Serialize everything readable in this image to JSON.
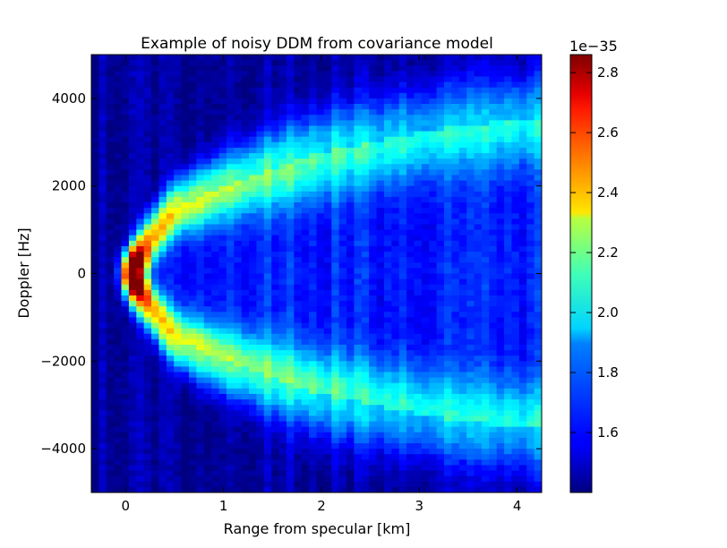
{
  "chart_data": {
    "type": "heatmap",
    "title": "Example of noisy DDM from covariance model",
    "xlabel": "Range from specular [km]",
    "ylabel": "Doppler [Hz]",
    "xlim": [
      -0.35,
      4.25
    ],
    "ylim": [
      -5000,
      5000
    ],
    "x_ticks": [
      0,
      1,
      2,
      3,
      4
    ],
    "x_tick_labels": [
      "0",
      "1",
      "2",
      "3",
      "4"
    ],
    "y_ticks": [
      -4000,
      -2000,
      0,
      2000,
      4000
    ],
    "y_tick_labels": [
      "−4000",
      "−2000",
      "0",
      "2000",
      "4000"
    ],
    "colormap": "jet",
    "colorbar": {
      "vmin": 1.4,
      "vmax": 2.86,
      "ticks": [
        1.6,
        1.8,
        2.0,
        2.2,
        2.4,
        2.6,
        2.8
      ],
      "tick_labels": [
        "1.6",
        "1.8",
        "2.0",
        "2.2",
        "2.4",
        "2.6",
        "2.8"
      ],
      "offset_label": "1e−35"
    },
    "structure": {
      "peak_value": 2.85,
      "peak_location": [
        0.1,
        0
      ],
      "noise_floor": 1.45,
      "horseshoe_ridge": {
        "range_km": [
          0.0,
          0.5,
          1.0,
          1.5,
          2.0,
          2.5,
          3.0,
          3.5,
          4.0,
          4.25
        ],
        "doppler_hz": [
          0,
          1500,
          2000,
          2400,
          2750,
          3000,
          3200,
          3400,
          3500,
          3550
        ],
        "ridge_value": [
          2.7,
          2.25,
          2.1,
          2.0,
          1.95,
          1.9,
          1.88,
          1.85,
          1.85,
          1.85
        ]
      }
    },
    "grid": false
  }
}
